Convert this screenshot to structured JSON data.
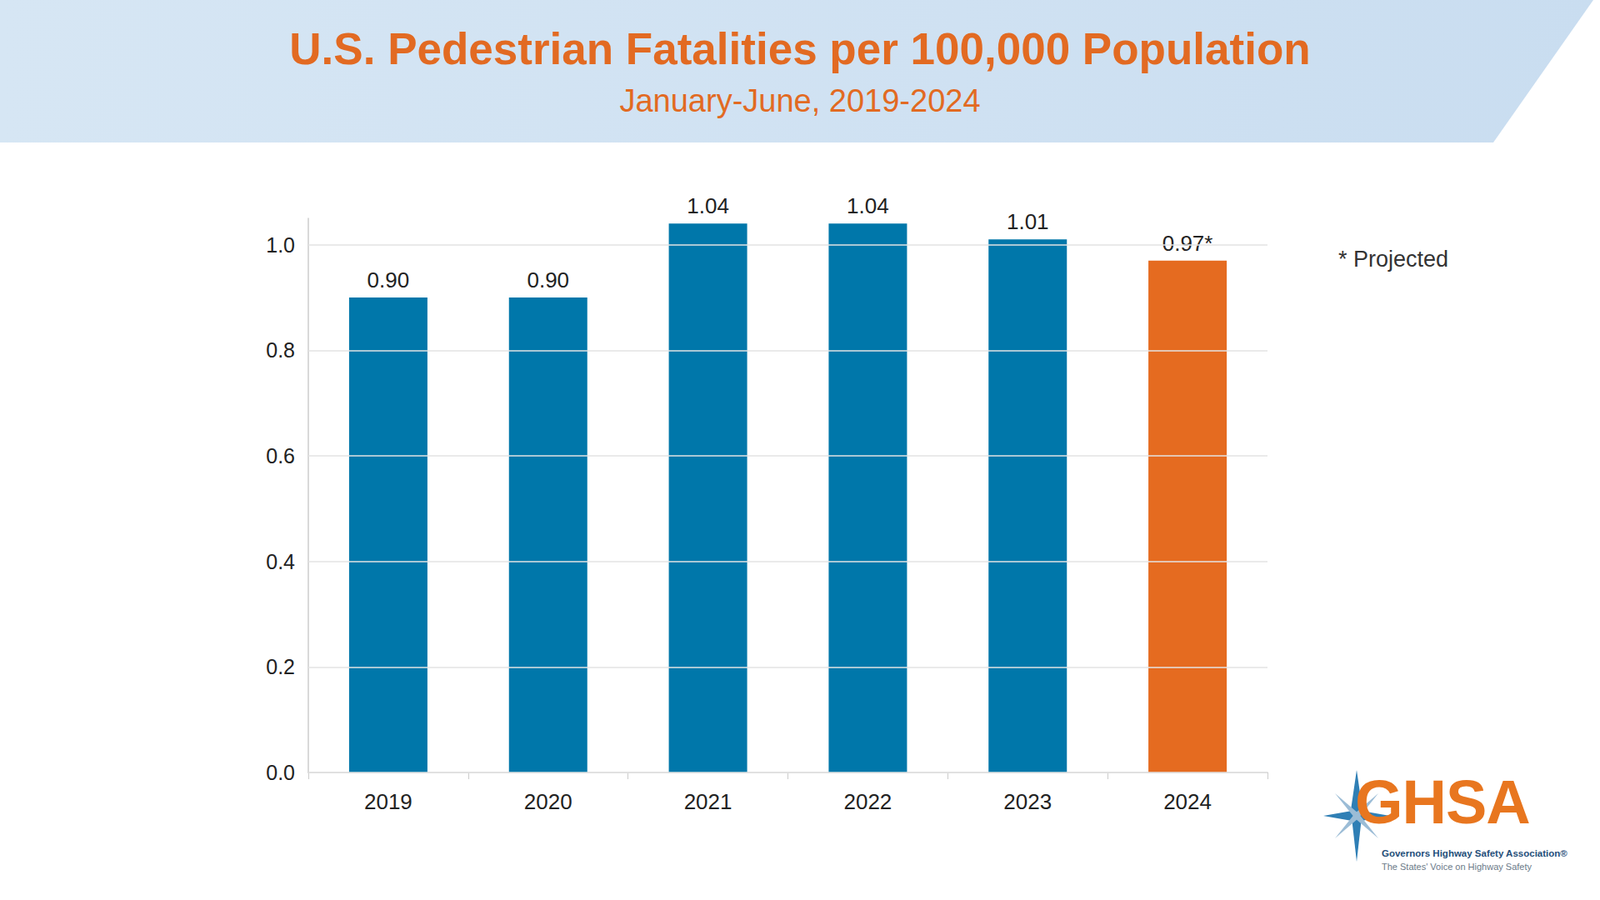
{
  "chart_data": {
    "type": "bar",
    "title": "U.S. Pedestrian Fatalities per 100,000 Population",
    "subtitle": "January-June, 2019-2024",
    "categories": [
      "2019",
      "2020",
      "2021",
      "2022",
      "2023",
      "2024"
    ],
    "values": [
      0.9,
      0.9,
      1.04,
      1.04,
      1.01,
      0.97
    ],
    "value_labels": [
      "0.90",
      "0.90",
      "1.04",
      "1.04",
      "1.01",
      "0.97*"
    ],
    "colors": [
      "#0077aa",
      "#0077aa",
      "#0077aa",
      "#0077aa",
      "#0077aa",
      "#e56b20"
    ],
    "ylim": [
      0,
      1.05
    ],
    "yticks": [
      {
        "value": 0,
        "label": "0.0"
      },
      {
        "value": 0.2,
        "label": "0.2"
      },
      {
        "value": 0.4,
        "label": "0.4"
      },
      {
        "value": 0.6,
        "label": "0.6"
      },
      {
        "value": 0.8,
        "label": "0.8"
      },
      {
        "value": 1.0,
        "label": "1.0"
      }
    ],
    "grid": true,
    "data_labels": true,
    "annotations": [
      "* Projected"
    ]
  },
  "logo": {
    "name": "GHSA",
    "organization": "Governors Highway Safety Association®",
    "tagline": "The States' Voice on Highway Safety"
  }
}
